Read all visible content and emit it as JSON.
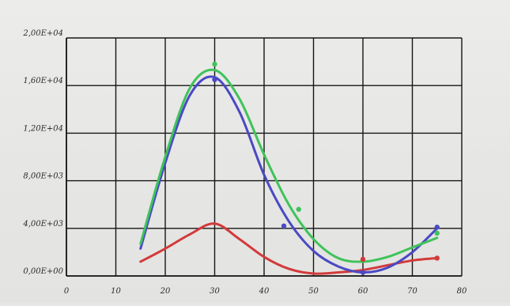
{
  "chart_data": {
    "type": "line",
    "title": "",
    "xlabel": "",
    "ylabel": "",
    "xlim": [
      0,
      80
    ],
    "ylim": [
      0,
      20000
    ],
    "xticks": [
      0,
      10,
      20,
      30,
      40,
      50,
      60,
      70,
      80
    ],
    "xtick_labels": [
      "0",
      "10",
      "20",
      "30",
      "40",
      "50",
      "60",
      "70",
      "80"
    ],
    "yticks": [
      0,
      4000,
      8000,
      12000,
      16000,
      20000
    ],
    "ytick_labels": [
      "0,00E+00",
      "4,00E+03",
      "8,00E+03",
      "1,20E+04",
      "1,60E+04",
      "2,00E+04"
    ],
    "grid": true,
    "legend": "none",
    "series": [
      {
        "color": "#3fc35a",
        "x": [
          15,
          20,
          25,
          30,
          35,
          40,
          45,
          50,
          55,
          60,
          65,
          70,
          75
        ],
        "y": [
          2700,
          10000,
          15800,
          17300,
          14900,
          10200,
          6000,
          3100,
          1500,
          1200,
          1600,
          2400,
          3200
        ]
      },
      {
        "color": "#4a49c5",
        "x": [
          15,
          20,
          25,
          30,
          35,
          40,
          45,
          50,
          55,
          60,
          65,
          70,
          75
        ],
        "y": [
          2300,
          9500,
          15200,
          16700,
          13800,
          8500,
          4600,
          2100,
          800,
          300,
          700,
          2000,
          4000
        ]
      },
      {
        "color": "#d23a3a",
        "x": [
          15,
          20,
          25,
          30,
          35,
          40,
          45,
          50,
          55,
          60,
          65,
          70,
          75
        ],
        "y": [
          1200,
          2300,
          3500,
          4400,
          3100,
          1600,
          600,
          200,
          300,
          500,
          900,
          1300,
          1500
        ]
      }
    ],
    "markers": [
      {
        "series": 0,
        "x": 30,
        "y": 17800
      },
      {
        "series": 1,
        "x": 30,
        "y": 16500
      },
      {
        "series": 1,
        "x": 44,
        "y": 4200
      },
      {
        "series": 0,
        "x": 47,
        "y": 5600
      },
      {
        "series": 1,
        "x": 60,
        "y": 300
      },
      {
        "series": 2,
        "x": 60,
        "y": 1400
      },
      {
        "series": 1,
        "x": 75,
        "y": 4100
      },
      {
        "series": 0,
        "x": 75,
        "y": 3600
      },
      {
        "series": 2,
        "x": 75,
        "y": 1500
      }
    ]
  }
}
